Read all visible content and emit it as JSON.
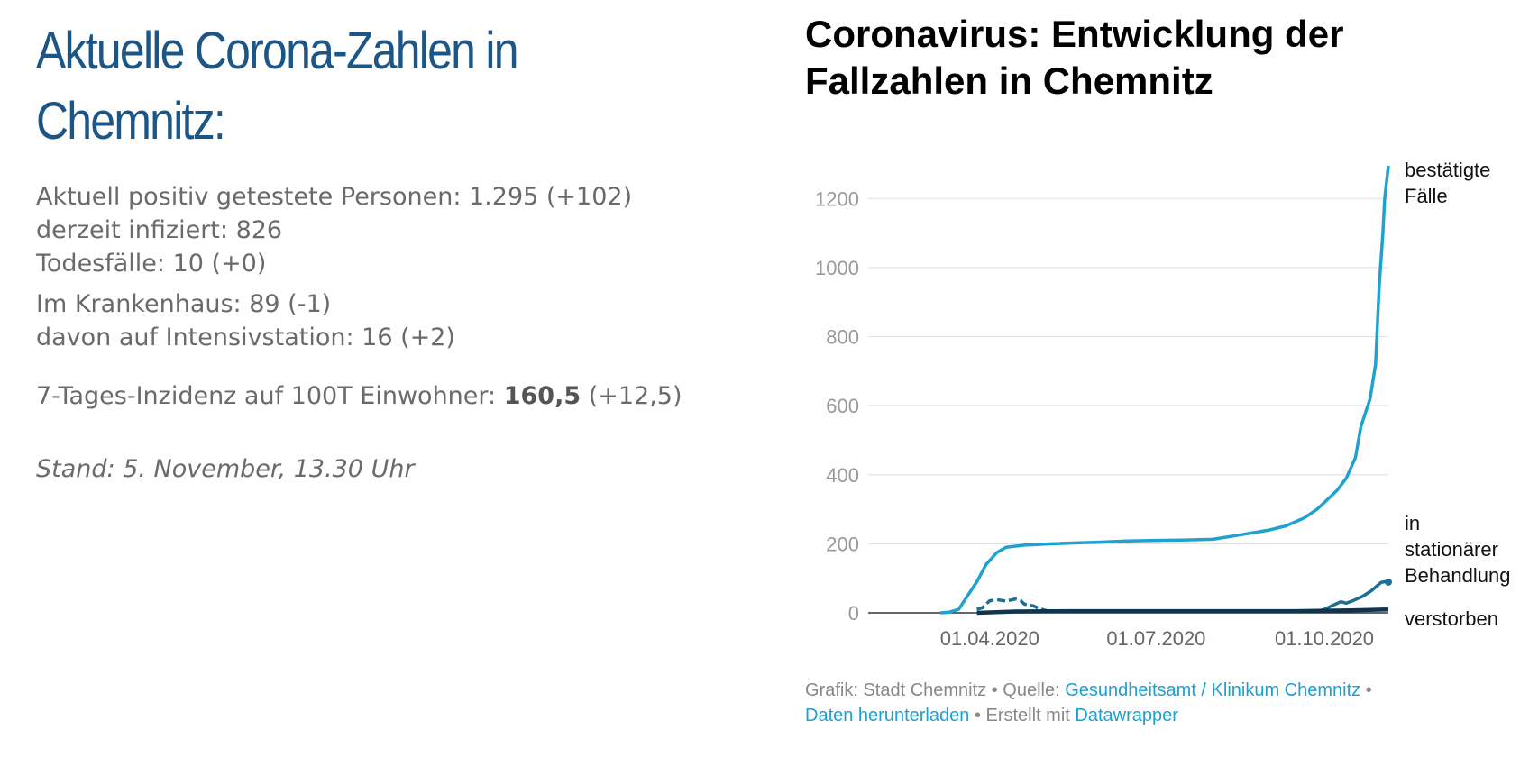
{
  "left": {
    "headline": "Aktuelle Corona-Zahlen in Chemnitz:",
    "stats": [
      "Aktuell positiv getestete Personen: 1.295 (+102)",
      "derzeit infiziert: 826",
      "Todesfälle: 10 (+0)"
    ],
    "hospital": [
      "Im Krankenhaus: 89 (-1)",
      "davon auf Intensivstation: 16 (+2)"
    ],
    "incidence": {
      "label": "7-Tages-Inzidenz auf 100T Einwohner: ",
      "value": "160,5",
      "change": " (+12,5)"
    },
    "stand": "Stand: 5. November, 13.30 Uhr"
  },
  "chart_data": {
    "type": "line",
    "title": "Coronavirus: Entwicklung der Fallzahlen in Chemnitz",
    "xlabel": "",
    "ylabel": "",
    "ylim": [
      0,
      1300
    ],
    "yticks": [
      "0",
      "200",
      "400",
      "600",
      "800",
      "1000",
      "1200"
    ],
    "xticks": [
      "01.04.2020",
      "01.07.2020",
      "01.10.2020"
    ],
    "x_range": [
      "2020-03-05",
      "2020-11-05"
    ],
    "grid": true,
    "series": [
      {
        "name": "bestätigte Fälle",
        "color": "#1fa1d1",
        "points": [
          [
            "2020-03-05",
            0
          ],
          [
            "2020-03-10",
            2
          ],
          [
            "2020-03-15",
            10
          ],
          [
            "2020-03-20",
            50
          ],
          [
            "2020-03-25",
            90
          ],
          [
            "2020-03-30",
            140
          ],
          [
            "2020-04-05",
            175
          ],
          [
            "2020-04-10",
            190
          ],
          [
            "2020-04-20",
            196
          ],
          [
            "2020-05-01",
            199
          ],
          [
            "2020-05-15",
            202
          ],
          [
            "2020-06-01",
            205
          ],
          [
            "2020-06-15",
            208
          ],
          [
            "2020-07-01",
            210
          ],
          [
            "2020-07-15",
            211
          ],
          [
            "2020-08-01",
            213
          ],
          [
            "2020-08-15",
            225
          ],
          [
            "2020-09-01",
            240
          ],
          [
            "2020-09-10",
            252
          ],
          [
            "2020-09-20",
            275
          ],
          [
            "2020-09-27",
            300
          ],
          [
            "2020-10-03",
            330
          ],
          [
            "2020-10-08",
            355
          ],
          [
            "2020-10-13",
            390
          ],
          [
            "2020-10-18",
            450
          ],
          [
            "2020-10-21",
            540
          ],
          [
            "2020-10-26",
            620
          ],
          [
            "2020-10-29",
            720
          ],
          [
            "2020-10-31",
            950
          ],
          [
            "2020-11-02",
            1100
          ],
          [
            "2020-11-03",
            1200
          ],
          [
            "2020-11-05",
            1295
          ]
        ]
      },
      {
        "name": "in stationärer Behandlung",
        "color": "#1b6f93",
        "segments": [
          [
            [
              "2020-03-25",
              10
            ],
            [
              "2020-03-28",
              15
            ],
            [
              "2020-04-01",
              35
            ],
            [
              "2020-04-05",
              38
            ],
            [
              "2020-04-10",
              34
            ],
            [
              "2020-04-15",
              40
            ],
            [
              "2020-04-18",
              35
            ],
            [
              "2020-04-20",
              25
            ],
            [
              "2020-04-25",
              20
            ],
            [
              "2020-04-28",
              12
            ],
            [
              "2020-05-01",
              8
            ],
            [
              "2020-05-03",
              5
            ]
          ],
          [
            [
              "2020-09-25",
              2
            ],
            [
              "2020-10-01",
              10
            ],
            [
              "2020-10-05",
              20
            ],
            [
              "2020-10-10",
              32
            ],
            [
              "2020-10-13",
              28
            ],
            [
              "2020-10-17",
              36
            ],
            [
              "2020-10-22",
              48
            ],
            [
              "2020-10-27",
              65
            ],
            [
              "2020-11-01",
              88
            ],
            [
              "2020-11-03",
              90
            ],
            [
              "2020-11-05",
              89
            ]
          ]
        ]
      },
      {
        "name": "verstorben",
        "color": "#0d3550",
        "points": [
          [
            "2020-03-25",
            0
          ],
          [
            "2020-04-15",
            4
          ],
          [
            "2020-05-15",
            5
          ],
          [
            "2020-09-15",
            5
          ],
          [
            "2020-10-15",
            7
          ],
          [
            "2020-11-05",
            10
          ]
        ]
      }
    ]
  },
  "footer": {
    "graphic": "Grafik: Stadt Chemnitz • Quelle: ",
    "source_link": "Gesundheitsamt / Klinikum Chemnitz",
    "sep": " •",
    "download_link": "Daten herunterladen",
    "created": " • Erstellt mit ",
    "datawrapper_link": "Datawrapper"
  },
  "colors": {
    "headline": "#1c5687",
    "text": "#6a6a6a",
    "grid": "#e2e2e2",
    "axis_label": "#999999",
    "link": "#1d9fd2"
  }
}
